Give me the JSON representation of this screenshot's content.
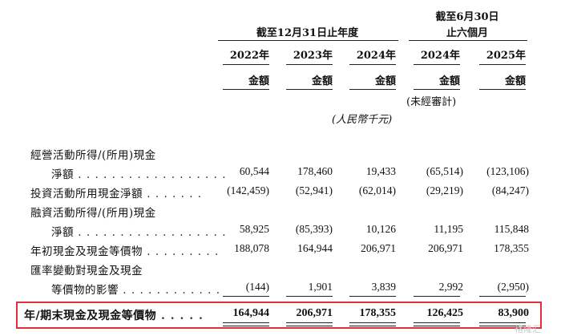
{
  "header": {
    "group1_title": "截至12月31日止年度",
    "group2_title_line1": "截至6月30日",
    "group2_title_line2": "止六個月",
    "years": [
      "2022年",
      "2023年",
      "2024年",
      "2024年",
      "2025年"
    ],
    "amount_label": "金額",
    "unaudited": "(未經審計)",
    "unit": "(人民幣千元)"
  },
  "rows": [
    {
      "label_line1": "經營活動所得/(所用)現金",
      "label_line2": "淨額",
      "values": [
        "60,544",
        "178,460",
        "19,433",
        "(65,514)",
        "(123,106)"
      ]
    },
    {
      "label_line1": "投資活動所用現金淨額",
      "values": [
        "(142,459)",
        "(52,941)",
        "(62,014)",
        "(29,219)",
        "(84,247)"
      ]
    },
    {
      "label_line1": "融資活動所得/(所用)現金",
      "label_line2": "淨額",
      "values": [
        "58,925",
        "(85,393)",
        "10,126",
        "11,195",
        "115,848"
      ]
    },
    {
      "label_line1": "年初現金及現金等價物",
      "values": [
        "188,078",
        "164,944",
        "206,971",
        "206,971",
        "178,355"
      ]
    },
    {
      "label_line1": "匯率變動對現金及現金",
      "label_line2": "等價物的影響",
      "values": [
        "(144)",
        "1,901",
        "3,839",
        "2,992",
        "(2,950)"
      ]
    }
  ],
  "total": {
    "label": "年/期末現金及現金等價物",
    "values": [
      "164,944",
      "206,971",
      "178,355",
      "126,425",
      "83,900"
    ]
  },
  "highlight_color": "#e0303a",
  "watermark": "格隆汇"
}
